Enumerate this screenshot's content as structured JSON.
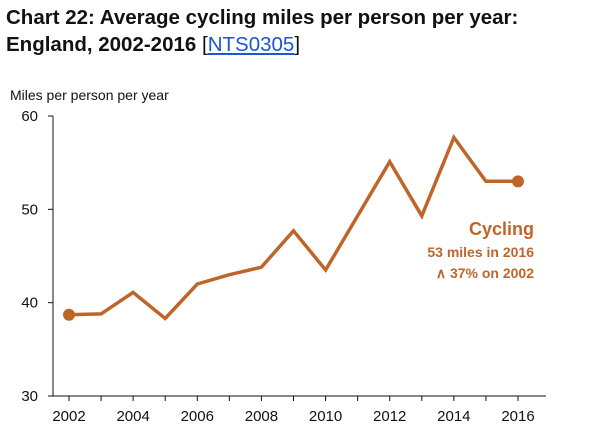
{
  "title": {
    "text": "Chart 22: Average cycling miles per person per year: England, 2002-2016",
    "bracket_open": "[",
    "link": "NTS0305",
    "bracket_close": "]"
  },
  "annotation": {
    "name": "Cycling",
    "line1": "53 miles  in 2016",
    "line2": "∧ 37% on 2002"
  },
  "colors": {
    "series": "#c0652a",
    "axis": "#111111",
    "link": "#1a56d6"
  },
  "chart_data": {
    "type": "line",
    "ylabel": "Miles per person per year",
    "xlabel": "",
    "ylim": [
      30,
      60
    ],
    "yticks": [
      30,
      40,
      50,
      60
    ],
    "xticks": [
      2002,
      2004,
      2006,
      2008,
      2010,
      2012,
      2014,
      2016
    ],
    "grid": false,
    "legend": "none",
    "series": [
      {
        "name": "Cycling",
        "x": [
          2002,
          2003,
          2004,
          2005,
          2006,
          2007,
          2008,
          2009,
          2010,
          2011,
          2012,
          2013,
          2014,
          2015,
          2016
        ],
        "values": [
          38.7,
          38.8,
          41.1,
          38.3,
          42.0,
          43.0,
          43.8,
          47.7,
          43.5,
          49.3,
          55.1,
          49.3,
          57.7,
          53.0,
          53.0
        ]
      }
    ],
    "markers_at": [
      2002,
      2016
    ]
  }
}
